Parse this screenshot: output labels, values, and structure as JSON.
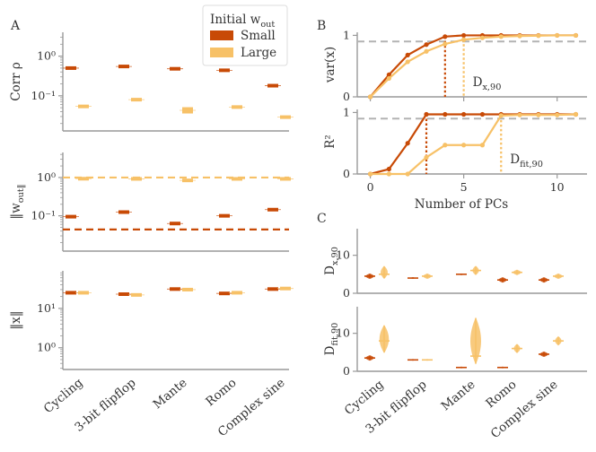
{
  "colors": {
    "small": "#c84a06",
    "large": "#f7c167",
    "axis": "#999999",
    "text": "#333333",
    "ref": "#b3b3b3"
  },
  "panel_letters": [
    "A",
    "B",
    "C"
  ],
  "legend": {
    "title": "Initial w_out",
    "entries": [
      "Small",
      "Large"
    ]
  },
  "tasks": [
    "Cycling",
    "3-bit flipflop",
    "Mante",
    "Romo",
    "Complex sine"
  ],
  "chart_data": [
    {
      "id": "A1",
      "type": "box",
      "ylabel": "Corr ρ",
      "yscale": "log",
      "ylim": [
        0.013,
        4
      ],
      "ticks": [
        {
          "v": 1,
          "t": "10⁰"
        },
        {
          "v": 0.1,
          "t": "10⁻¹"
        }
      ],
      "series": [
        {
          "name": "Small",
          "values": [
            0.5,
            0.55,
            0.48,
            0.44,
            0.18
          ]
        },
        {
          "name": "Large",
          "values": [
            0.054,
            0.08,
            0.043,
            0.052,
            0.029
          ]
        }
      ]
    },
    {
      "id": "A2",
      "type": "box",
      "ylabel": "‖w_out‖",
      "yscale": "log",
      "ylim": [
        0.012,
        4.5
      ],
      "ticks": [
        {
          "v": 1,
          "t": "10⁰"
        },
        {
          "v": 0.1,
          "t": "10⁻¹"
        }
      ],
      "reference_lines": [
        {
          "name": "Small",
          "value": 0.044
        },
        {
          "name": "Large",
          "value": 1.0
        }
      ],
      "series": [
        {
          "name": "Small",
          "values": [
            0.095,
            0.125,
            0.063,
            0.1,
            0.145
          ]
        },
        {
          "name": "Large",
          "values": [
            0.93,
            0.92,
            0.84,
            0.92,
            0.92
          ]
        }
      ]
    },
    {
      "id": "A3",
      "type": "box",
      "ylabel": "‖x‖",
      "yscale": "log",
      "ylim": [
        0.28,
        90
      ],
      "ticks": [
        {
          "v": 10,
          "t": "10¹"
        },
        {
          "v": 1,
          "t": "10⁰"
        }
      ],
      "series": [
        {
          "name": "Small",
          "values": [
            25,
            23,
            31,
            24,
            31
          ]
        },
        {
          "name": "Large",
          "values": [
            25,
            22,
            30,
            25,
            32
          ]
        }
      ]
    },
    {
      "id": "B1",
      "type": "line",
      "ylabel": "var(x)",
      "ylim": [
        0,
        1.05
      ],
      "xlim": [
        -0.7,
        11.6
      ],
      "yticks": [
        0,
        1
      ],
      "x": [
        0,
        1,
        2,
        3,
        4,
        5,
        6,
        7,
        8,
        9,
        10,
        11
      ],
      "threshold": 0.9,
      "marker_label": "D_x,90",
      "series": [
        {
          "name": "Small",
          "values": [
            0.0,
            0.36,
            0.68,
            0.85,
            0.98,
            1.0,
            1.0,
            1.0,
            1.0,
            1.0,
            1.0,
            1.0
          ],
          "d90": 4
        },
        {
          "name": "Large",
          "values": [
            0.0,
            0.3,
            0.57,
            0.74,
            0.86,
            0.93,
            0.96,
            0.98,
            0.99,
            0.995,
            1.0,
            1.0
          ],
          "d90": 5
        }
      ]
    },
    {
      "id": "B2",
      "type": "line",
      "ylabel": "R²",
      "ylim": [
        0,
        1.05
      ],
      "xlim": [
        -0.7,
        11.6
      ],
      "yticks": [
        0,
        1
      ],
      "xticks": [
        0,
        5,
        10
      ],
      "xlabel": "Number of PCs",
      "x": [
        0,
        1,
        2,
        3,
        4,
        5,
        6,
        7,
        8,
        9,
        10,
        11
      ],
      "threshold": 0.9,
      "marker_label": "D_fit,90",
      "series": [
        {
          "name": "Small",
          "values": [
            0.0,
            0.08,
            0.5,
            0.97,
            0.97,
            0.97,
            0.97,
            0.97,
            0.97,
            0.97,
            0.97,
            0.97
          ],
          "d90": 3
        },
        {
          "name": "Large",
          "values": [
            0.0,
            0.0,
            0.0,
            0.27,
            0.47,
            0.47,
            0.47,
            0.95,
            0.96,
            0.96,
            0.96,
            0.97
          ],
          "d90": 7
        }
      ]
    },
    {
      "id": "C1",
      "type": "violin",
      "ylabel": "D_x,90",
      "ylim": [
        0,
        17
      ],
      "yticks": [
        0,
        10
      ],
      "series": [
        {
          "name": "Small",
          "groups": [
            {
              "min": 4,
              "max": 5,
              "med": 4.5
            },
            {
              "min": 4,
              "max": 4,
              "med": 4
            },
            {
              "min": 5,
              "max": 5,
              "med": 5
            },
            {
              "min": 3,
              "max": 4,
              "med": 3.5
            },
            {
              "min": 3,
              "max": 4,
              "med": 3.5
            }
          ]
        },
        {
          "name": "Large",
          "groups": [
            {
              "min": 4,
              "max": 7,
              "med": 5
            },
            {
              "min": 4,
              "max": 5,
              "med": 4.5
            },
            {
              "min": 5,
              "max": 7,
              "med": 6
            },
            {
              "min": 5,
              "max": 6,
              "med": 5.5
            },
            {
              "min": 4,
              "max": 5,
              "med": 4.5
            }
          ]
        }
      ]
    },
    {
      "id": "C2",
      "type": "violin",
      "ylabel": "D_fit,90",
      "ylim": [
        0,
        17
      ],
      "yticks": [
        0,
        10
      ],
      "series": [
        {
          "name": "Small",
          "groups": [
            {
              "min": 3,
              "max": 4,
              "med": 3.5
            },
            {
              "min": 3,
              "max": 3,
              "med": 3
            },
            {
              "min": 1,
              "max": 1,
              "med": 1
            },
            {
              "min": 1,
              "max": 1,
              "med": 1
            },
            {
              "min": 4,
              "max": 5,
              "med": 4.5
            }
          ]
        },
        {
          "name": "Large",
          "groups": [
            {
              "min": 5,
              "max": 12,
              "med": 8
            },
            {
              "min": 3,
              "max": 3,
              "med": 3
            },
            {
              "min": 2,
              "max": 14,
              "med": 4
            },
            {
              "min": 5,
              "max": 7,
              "med": 6
            },
            {
              "min": 7,
              "max": 9,
              "med": 8
            }
          ]
        }
      ]
    }
  ]
}
